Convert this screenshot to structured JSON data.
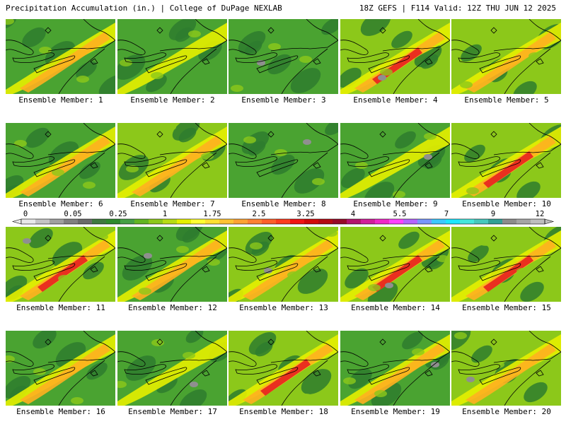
{
  "header": {
    "title": "Precipitation Accumulation (in.) | College of DuPage NEXLAB",
    "run_info": "18Z GEFS | F114 Valid: 12Z THU JUN 12 2025"
  },
  "legend": {
    "labels": [
      "0",
      "0.05",
      "0.25",
      "1",
      "1.75",
      "2.5",
      "3.25",
      "4",
      "5.5",
      "7",
      "9",
      "12"
    ],
    "colors": [
      "#e8e8e8",
      "#c4c4c4",
      "#a0a0a0",
      "#808080",
      "#6a6a6a",
      "#3f7a3f",
      "#2e8b2e",
      "#45a045",
      "#62b523",
      "#8cc81a",
      "#b7dc14",
      "#e6f000",
      "#ffff33",
      "#ffe033",
      "#ffc233",
      "#ffa233",
      "#ff8133",
      "#ff5f2a",
      "#ff3c1e",
      "#f01414",
      "#d20a0a",
      "#b40a14",
      "#960a28",
      "#b4146e",
      "#d21e9b",
      "#f028c8",
      "#ff41ff",
      "#b464ff",
      "#7896ff",
      "#3cc8ff",
      "#1ee6ff",
      "#46e6dc",
      "#46c8be",
      "#32a096",
      "#8c8c8c",
      "#a5a5a5",
      "#bebebe"
    ]
  },
  "panels": [
    {
      "label": "Ensemble Member: 1"
    },
    {
      "label": "Ensemble Member: 2"
    },
    {
      "label": "Ensemble Member: 3"
    },
    {
      "label": "Ensemble Member: 4"
    },
    {
      "label": "Ensemble Member: 5"
    },
    {
      "label": "Ensemble Member: 6"
    },
    {
      "label": "Ensemble Member: 7"
    },
    {
      "label": "Ensemble Member: 8"
    },
    {
      "label": "Ensemble Member: 9"
    },
    {
      "label": "Ensemble Member: 10"
    },
    {
      "label": "Ensemble Member: 11"
    },
    {
      "label": "Ensemble Member: 12"
    },
    {
      "label": "Ensemble Member: 13"
    },
    {
      "label": "Ensemble Member: 14"
    },
    {
      "label": "Ensemble Member: 15"
    },
    {
      "label": "Ensemble Member: 16"
    },
    {
      "label": "Ensemble Member: 17"
    },
    {
      "label": "Ensemble Member: 18"
    },
    {
      "label": "Ensemble Member: 19"
    },
    {
      "label": "Ensemble Member: 20"
    }
  ],
  "palette": {
    "dark_green": "#2e7d2e",
    "green": "#4aa331",
    "light_green": "#8cc81a",
    "yellow": "#e6f000",
    "orange": "#ffb020",
    "red": "#e82020",
    "gray": "#8f8f8f",
    "border": "#000000"
  }
}
